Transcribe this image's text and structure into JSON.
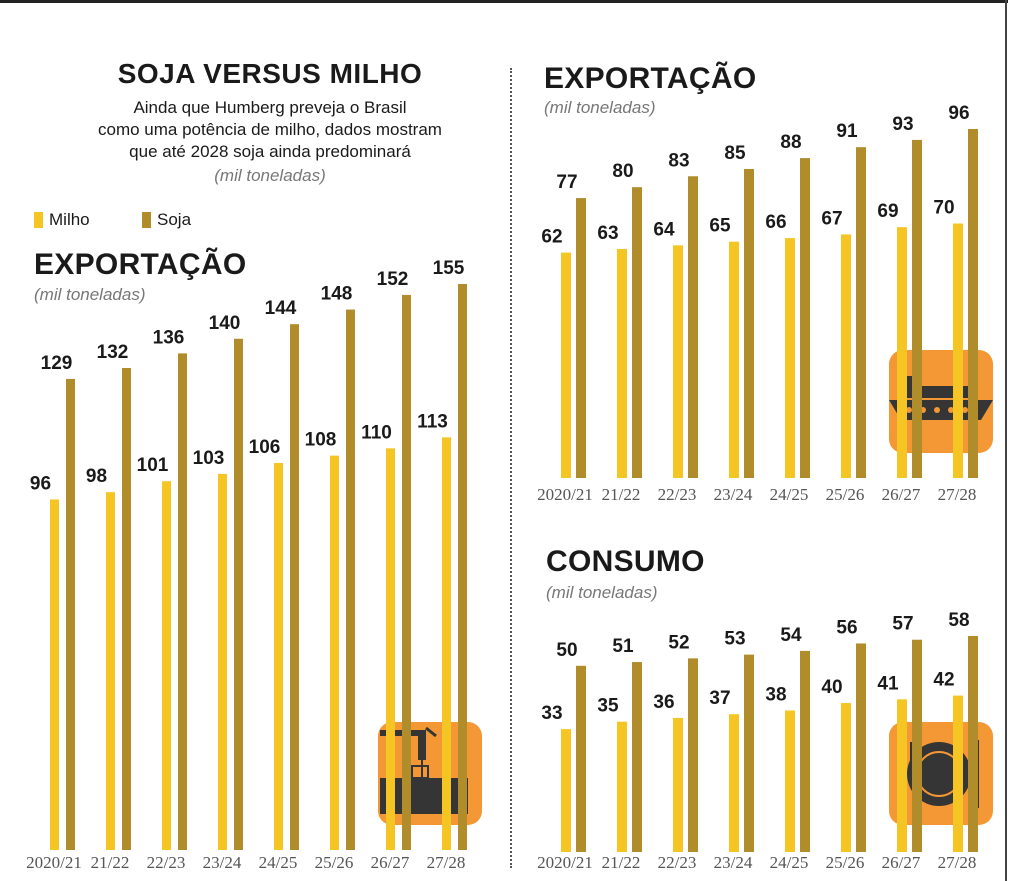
{
  "header": {
    "title": "SOJA VERSUS MILHO",
    "subtitle_lines": [
      "Ainda que Humberg preveja o Brasil",
      "como uma potência de milho, dados mostram",
      "que até 2028 soja ainda predominará"
    ],
    "unit": "(mil toneladas)"
  },
  "legend": {
    "milho": "Milho",
    "soja": "Soja"
  },
  "colors": {
    "milho": "#f5c623",
    "soja": "#b08c2a",
    "icon_bg": "#f28a1a"
  },
  "chart_data": [
    {
      "type": "bar",
      "id": "left",
      "title": "EXPORTAÇÃO",
      "unit": "(mil toneladas)",
      "icon": "port-crane-icon",
      "categories": [
        "2020/21",
        "21/22",
        "22/23",
        "23/24",
        "24/25",
        "25/26",
        "26/27",
        "27/28"
      ],
      "series": [
        {
          "name": "Milho",
          "values": [
            96,
            98,
            101,
            103,
            106,
            108,
            110,
            113
          ]
        },
        {
          "name": "Soja",
          "values": [
            129,
            132,
            136,
            140,
            144,
            148,
            152,
            155
          ]
        }
      ],
      "ylim": [
        0,
        155
      ]
    },
    {
      "type": "bar",
      "id": "right-top",
      "title": "EXPORTAÇÃO",
      "unit": "(mil toneladas)",
      "icon": "cargo-ship-icon",
      "categories": [
        "2020/21",
        "21/22",
        "22/23",
        "23/24",
        "24/25",
        "25/26",
        "26/27",
        "27/28"
      ],
      "series": [
        {
          "name": "Milho",
          "values": [
            62,
            63,
            64,
            65,
            66,
            67,
            69,
            70
          ]
        },
        {
          "name": "Soja",
          "values": [
            77,
            80,
            83,
            85,
            88,
            91,
            93,
            96
          ]
        }
      ],
      "ylim": [
        0,
        96
      ]
    },
    {
      "type": "bar",
      "id": "right-bottom",
      "title": "CONSUMO",
      "unit": "(mil toneladas)",
      "icon": "plate-cutlery-icon",
      "categories": [
        "2020/21",
        "21/22",
        "22/23",
        "23/24",
        "24/25",
        "25/26",
        "26/27",
        "27/28"
      ],
      "series": [
        {
          "name": "Milho",
          "values": [
            33,
            35,
            36,
            37,
            38,
            40,
            41,
            42
          ]
        },
        {
          "name": "Soja",
          "values": [
            50,
            51,
            52,
            53,
            54,
            56,
            57,
            58
          ]
        }
      ],
      "ylim": [
        0,
        58
      ]
    }
  ]
}
